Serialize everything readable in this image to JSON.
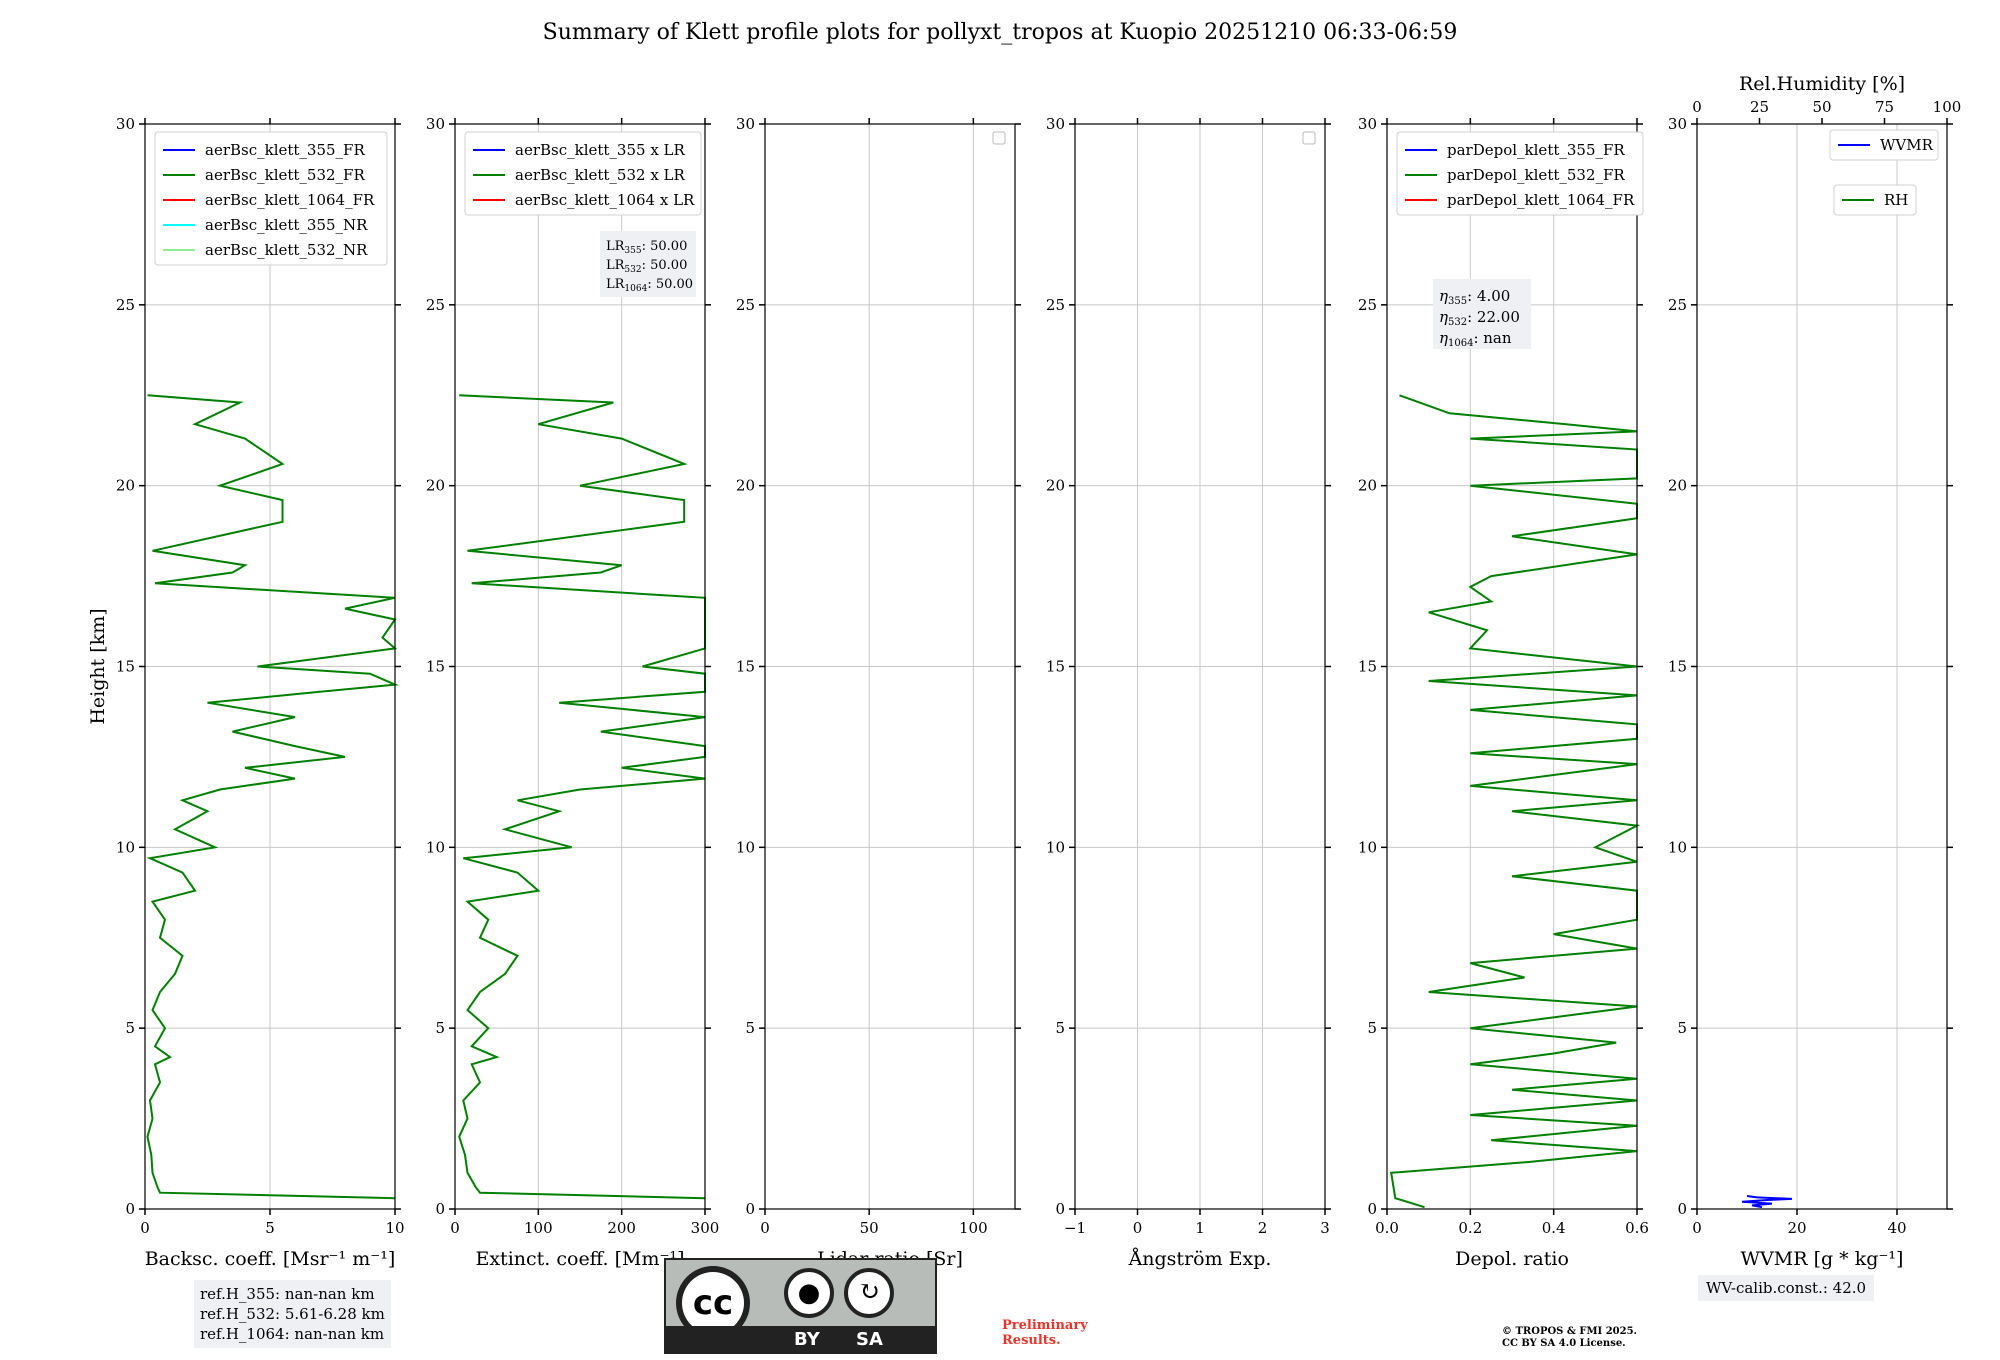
{
  "title": "Summary of Klett profile plots for pollyxt_tropos at Kuopio 20251210 06:33-06:59",
  "colors": {
    "ch355": "#0000ff",
    "ch532": "#008000",
    "ch1064": "#ff0000",
    "ch355nr": "#00ffff",
    "ch532nr": "#90ee90",
    "grid": "#c8c8c8"
  },
  "chart_data": [
    {
      "type": "line",
      "id": "backscatter",
      "xlabel": "Backsc. coeff. [Msr⁻¹ m⁻¹]",
      "ylabel": "Height [km]",
      "xlim": [
        0,
        10
      ],
      "ylim": [
        0,
        30
      ],
      "xticks": [
        0,
        5,
        10
      ],
      "yticks": [
        0,
        5,
        10,
        15,
        20,
        25,
        30
      ],
      "legend": [
        "aerBsc_klett_355_FR",
        "aerBsc_klett_532_FR",
        "aerBsc_klett_1064_FR",
        "aerBsc_klett_355_NR",
        "aerBsc_klett_532_NR"
      ],
      "series": [
        {
          "name": "aerBsc_klett_532_FR",
          "color": "#008000",
          "points": [
            [
              10,
              0.3
            ],
            [
              0.6,
              0.45
            ],
            [
              0.5,
              0.6
            ],
            [
              0.3,
              1.0
            ],
            [
              0.25,
              1.5
            ],
            [
              0.1,
              2.0
            ],
            [
              0.3,
              2.5
            ],
            [
              0.2,
              3.0
            ],
            [
              0.6,
              3.5
            ],
            [
              0.4,
              4.0
            ],
            [
              1.0,
              4.2
            ],
            [
              0.4,
              4.5
            ],
            [
              0.8,
              5.0
            ],
            [
              0.3,
              5.5
            ],
            [
              0.6,
              6.0
            ],
            [
              1.2,
              6.5
            ],
            [
              1.5,
              7.0
            ],
            [
              0.6,
              7.5
            ],
            [
              0.8,
              8.0
            ],
            [
              0.3,
              8.5
            ],
            [
              2.0,
              8.8
            ],
            [
              1.5,
              9.3
            ],
            [
              0.2,
              9.7
            ],
            [
              2.8,
              10.0
            ],
            [
              1.2,
              10.5
            ],
            [
              2.5,
              11.0
            ],
            [
              1.5,
              11.3
            ],
            [
              3.0,
              11.6
            ],
            [
              6.0,
              11.9
            ],
            [
              4.0,
              12.2
            ],
            [
              8.0,
              12.5
            ],
            [
              6.0,
              12.8
            ],
            [
              3.5,
              13.2
            ],
            [
              6.0,
              13.6
            ],
            [
              2.5,
              14.0
            ],
            [
              7.0,
              14.3
            ],
            [
              10,
              14.5
            ],
            [
              9.0,
              14.8
            ],
            [
              4.5,
              15.0
            ],
            [
              10,
              15.5
            ],
            [
              9.5,
              15.8
            ],
            [
              10,
              16.3
            ],
            [
              8.0,
              16.6
            ],
            [
              10,
              16.9
            ],
            [
              0.4,
              17.3
            ],
            [
              3.5,
              17.6
            ],
            [
              4.0,
              17.8
            ],
            [
              0.3,
              18.2
            ],
            [
              5.5,
              19.0
            ],
            [
              5.5,
              19.6
            ],
            [
              3.0,
              20.0
            ],
            [
              5.5,
              20.6
            ],
            [
              4.0,
              21.3
            ],
            [
              2.0,
              21.7
            ],
            [
              3.8,
              22.3
            ],
            [
              0.1,
              22.5
            ]
          ]
        }
      ],
      "annotations": [
        "ref.H_355: nan-nan km",
        "ref.H_532: 5.61-6.28 km",
        "ref.H_1064: nan-nan km"
      ]
    },
    {
      "type": "line",
      "id": "extinction",
      "xlabel": "Extinct. coeff. [Mm⁻¹]",
      "xlim": [
        0,
        300
      ],
      "ylim": [
        0,
        30
      ],
      "xticks": [
        0,
        100,
        200,
        300
      ],
      "yticks": [
        0,
        5,
        10,
        15,
        20,
        25,
        30
      ],
      "legend": [
        "aerBsc_klett_355 x LR",
        "aerBsc_klett_532 x LR",
        "aerBsc_klett_1064 x LR"
      ],
      "lr_box": [
        [
          "355",
          "50.00"
        ],
        [
          "532",
          "50.00"
        ],
        [
          "1064",
          "50.00"
        ]
      ],
      "series": [
        {
          "name": "aerBsc_klett_532 x LR",
          "color": "#008000",
          "points": [
            [
              300,
              0.3
            ],
            [
              30,
              0.45
            ],
            [
              25,
              0.6
            ],
            [
              15,
              1.0
            ],
            [
              12,
              1.5
            ],
            [
              5,
              2.0
            ],
            [
              15,
              2.5
            ],
            [
              10,
              3.0
            ],
            [
              30,
              3.5
            ],
            [
              20,
              4.0
            ],
            [
              50,
              4.2
            ],
            [
              20,
              4.5
            ],
            [
              40,
              5.0
            ],
            [
              15,
              5.5
            ],
            [
              30,
              6.0
            ],
            [
              60,
              6.5
            ],
            [
              75,
              7.0
            ],
            [
              30,
              7.5
            ],
            [
              40,
              8.0
            ],
            [
              15,
              8.5
            ],
            [
              100,
              8.8
            ],
            [
              75,
              9.3
            ],
            [
              10,
              9.7
            ],
            [
              140,
              10.0
            ],
            [
              60,
              10.5
            ],
            [
              125,
              11.0
            ],
            [
              75,
              11.3
            ],
            [
              150,
              11.6
            ],
            [
              300,
              11.9
            ],
            [
              200,
              12.2
            ],
            [
              300,
              12.5
            ],
            [
              300,
              12.8
            ],
            [
              175,
              13.2
            ],
            [
              300,
              13.6
            ],
            [
              125,
              14.0
            ],
            [
              300,
              14.3
            ],
            [
              300,
              14.5
            ],
            [
              300,
              14.8
            ],
            [
              225,
              15.0
            ],
            [
              300,
              15.5
            ],
            [
              300,
              15.8
            ],
            [
              300,
              16.3
            ],
            [
              300,
              16.6
            ],
            [
              300,
              16.9
            ],
            [
              20,
              17.3
            ],
            [
              175,
              17.6
            ],
            [
              200,
              17.8
            ],
            [
              15,
              18.2
            ],
            [
              275,
              19.0
            ],
            [
              275,
              19.6
            ],
            [
              150,
              20.0
            ],
            [
              275,
              20.6
            ],
            [
              200,
              21.3
            ],
            [
              100,
              21.7
            ],
            [
              190,
              22.3
            ],
            [
              5,
              22.5
            ]
          ]
        }
      ]
    },
    {
      "type": "line",
      "id": "lidar_ratio",
      "xlabel": "Lidar ratio [Sr]",
      "xlim": [
        0,
        120
      ],
      "ylim": [
        0,
        30
      ],
      "xticks": [
        0,
        50,
        100
      ],
      "yticks": [
        0,
        5,
        10,
        15,
        20,
        25,
        30
      ],
      "series": []
    },
    {
      "type": "line",
      "id": "angstrom",
      "xlabel": "Ångström Exp.",
      "xlim": [
        -1,
        3
      ],
      "ylim": [
        0,
        30
      ],
      "xticks": [
        -1,
        0,
        1,
        2,
        3
      ],
      "yticks": [
        0,
        5,
        10,
        15,
        20,
        25,
        30
      ],
      "series": []
    },
    {
      "type": "line",
      "id": "depol",
      "xlabel": "Depol. ratio",
      "xlim": [
        0,
        0.6
      ],
      "ylim": [
        0,
        30
      ],
      "xticks": [
        0.0,
        0.2,
        0.4,
        0.6
      ],
      "yticks": [
        0,
        5,
        10,
        15,
        20,
        25,
        30
      ],
      "legend": [
        "parDepol_klett_355_FR",
        "parDepol_klett_532_FR",
        "parDepol_klett_1064_FR"
      ],
      "eta_box": [
        [
          "355",
          "4.00"
        ],
        [
          "532",
          "22.00"
        ],
        [
          "1064",
          "nan"
        ]
      ],
      "series": [
        {
          "name": "parDepol_klett_532_FR",
          "color": "#008000",
          "points": [
            [
              0.09,
              0.05
            ],
            [
              0.02,
              0.3
            ],
            [
              0.01,
              1.0
            ],
            [
              0.34,
              1.3
            ],
            [
              0.6,
              1.6
            ],
            [
              0.25,
              1.9
            ],
            [
              0.6,
              2.3
            ],
            [
              0.2,
              2.6
            ],
            [
              0.6,
              3.0
            ],
            [
              0.3,
              3.3
            ],
            [
              0.6,
              3.6
            ],
            [
              0.2,
              4.0
            ],
            [
              0.4,
              4.3
            ],
            [
              0.55,
              4.6
            ],
            [
              0.2,
              5.0
            ],
            [
              0.6,
              5.6
            ],
            [
              0.1,
              6.0
            ],
            [
              0.33,
              6.4
            ],
            [
              0.2,
              6.8
            ],
            [
              0.6,
              7.2
            ],
            [
              0.4,
              7.6
            ],
            [
              0.6,
              8.0
            ],
            [
              0.6,
              8.4
            ],
            [
              0.6,
              8.8
            ],
            [
              0.3,
              9.2
            ],
            [
              0.6,
              9.6
            ],
            [
              0.5,
              10.0
            ],
            [
              0.6,
              10.6
            ],
            [
              0.3,
              11.0
            ],
            [
              0.6,
              11.3
            ],
            [
              0.2,
              11.7
            ],
            [
              0.6,
              12.3
            ],
            [
              0.2,
              12.6
            ],
            [
              0.6,
              13.0
            ],
            [
              0.6,
              13.4
            ],
            [
              0.2,
              13.8
            ],
            [
              0.6,
              14.2
            ],
            [
              0.1,
              14.6
            ],
            [
              0.6,
              15.0
            ],
            [
              0.2,
              15.5
            ],
            [
              0.24,
              16.0
            ],
            [
              0.1,
              16.5
            ],
            [
              0.25,
              16.8
            ],
            [
              0.2,
              17.2
            ],
            [
              0.25,
              17.5
            ],
            [
              0.6,
              18.1
            ],
            [
              0.3,
              18.6
            ],
            [
              0.6,
              19.1
            ],
            [
              0.6,
              19.5
            ],
            [
              0.2,
              20.0
            ],
            [
              0.6,
              20.2
            ],
            [
              0.6,
              21.0
            ],
            [
              0.2,
              21.3
            ],
            [
              0.6,
              21.5
            ],
            [
              0.43,
              21.7
            ],
            [
              0.15,
              22.0
            ],
            [
              0.03,
              22.5
            ]
          ]
        }
      ]
    },
    {
      "type": "line",
      "id": "wvmr",
      "xlabel": "WVMR [g * kg⁻¹]",
      "top_xlabel": "Rel.Humidity [%]",
      "xlim": [
        0,
        50
      ],
      "ylim": [
        0,
        30
      ],
      "xticks": [
        0,
        20,
        40
      ],
      "top_xticks": [
        0,
        25,
        50,
        75,
        100
      ],
      "yticks": [
        0,
        5,
        10,
        15,
        20,
        25,
        30
      ],
      "legend": [
        "WVMR",
        "RH"
      ],
      "calib": "WV-calib.const.: 42.0",
      "series": [
        {
          "name": "WVMR",
          "color": "#0000ff",
          "points": [
            [
              13,
              0.05
            ],
            [
              11,
              0.1
            ],
            [
              15,
              0.15
            ],
            [
              9,
              0.2
            ],
            [
              14,
              0.25
            ],
            [
              19,
              0.28
            ],
            [
              12,
              0.32
            ],
            [
              10,
              0.36
            ]
          ]
        }
      ]
    }
  ],
  "license": {
    "by": "BY",
    "sa": "SA",
    "prelim": [
      "Preliminary",
      "Results."
    ],
    "copyright": [
      "© TROPOS & FMI 2025.",
      "CC BY SA 4.0 License."
    ]
  }
}
